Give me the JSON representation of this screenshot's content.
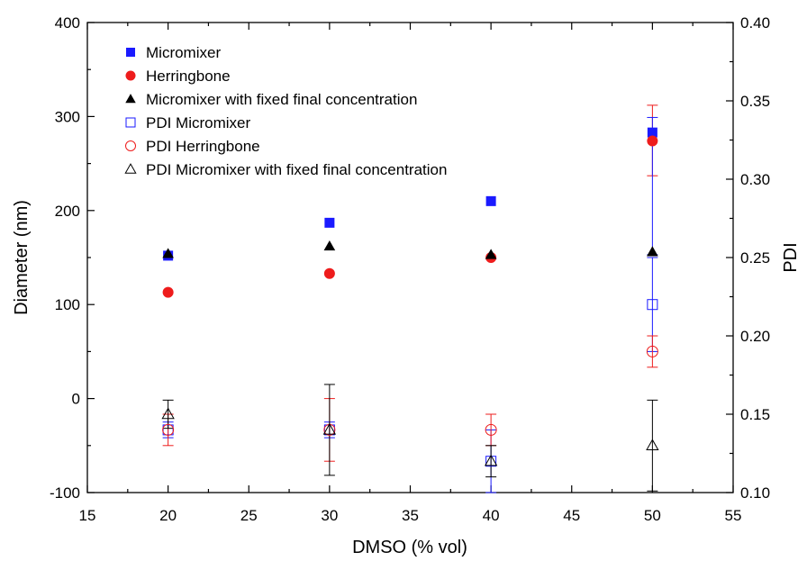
{
  "chart_data": {
    "type": "scatter",
    "xlabel": "DMSO (% vol)",
    "ylabel": "Diameter (nm)",
    "y2label": "PDI",
    "xlim": [
      15,
      55
    ],
    "ylim": [
      -100,
      400
    ],
    "y2lim": [
      0.1,
      0.4
    ],
    "x_ticks": [
      "15",
      "20",
      "25",
      "30",
      "35",
      "40",
      "45",
      "50",
      "55"
    ],
    "y_ticks": [
      "-100",
      "0",
      "100",
      "200",
      "300",
      "400"
    ],
    "y2_ticks": [
      "0.10",
      "0.15",
      "0.20",
      "0.25",
      "0.30",
      "0.35",
      "0.40"
    ],
    "grid": false,
    "legend_position": "top-left",
    "series": [
      {
        "name": "Micromixer",
        "axis": "left",
        "marker": "square-filled",
        "color": "#1a1aff",
        "points": [
          {
            "x": 20,
            "y": 152
          },
          {
            "x": 30,
            "y": 187
          },
          {
            "x": 40,
            "y": 210
          },
          {
            "x": 50,
            "y": 283
          }
        ]
      },
      {
        "name": "Herringbone",
        "axis": "left",
        "marker": "circle-filled",
        "color": "#ee1c1c",
        "points": [
          {
            "x": 20,
            "y": 113
          },
          {
            "x": 30,
            "y": 133
          },
          {
            "x": 40,
            "y": 150
          },
          {
            "x": 50,
            "y": 274
          }
        ]
      },
      {
        "name": "Micromixer with fixed final concentration",
        "axis": "left",
        "marker": "triangle-filled",
        "color": "#000000",
        "points": [
          {
            "x": 20,
            "y": 154
          },
          {
            "x": 30,
            "y": 162
          },
          {
            "x": 40,
            "y": 153
          },
          {
            "x": 50,
            "y": 156
          }
        ]
      },
      {
        "name": "PDI Micromixer",
        "axis": "right",
        "marker": "square-open",
        "color": "#1a1aff",
        "points": [
          {
            "x": 20,
            "y": 0.14,
            "err": 0.005
          },
          {
            "x": 30,
            "y": 0.14,
            "err": 0.005
          },
          {
            "x": 40,
            "y": 0.12,
            "err": 0.02
          },
          {
            "x": 50,
            "y": 0.22,
            "err": 0.03
          }
        ]
      },
      {
        "name": "PDI Herringbone",
        "axis": "right",
        "marker": "circle-open",
        "color": "#ee1c1c",
        "points": [
          {
            "x": 20,
            "y": 0.14,
            "err": 0.01
          },
          {
            "x": 30,
            "y": 0.14,
            "err": 0.02
          },
          {
            "x": 40,
            "y": 0.14,
            "err": 0.01
          },
          {
            "x": 50,
            "y": 0.19,
            "err": 0.01
          }
        ]
      },
      {
        "name": "PDI Micromixer with fixed final concentration",
        "axis": "right",
        "marker": "triangle-open",
        "color": "#000000",
        "points": [
          {
            "x": 20,
            "y": 0.15,
            "err": 0.009
          },
          {
            "x": 30,
            "y": 0.14,
            "err": 0.029
          },
          {
            "x": 40,
            "y": 0.12,
            "err": 0.01
          },
          {
            "x": 50,
            "y": 0.13,
            "err": 0.029
          }
        ]
      }
    ],
    "error_bars_left": [
      {
        "x": 50,
        "low": 237,
        "high": 312,
        "color": "#ee1c1c"
      },
      {
        "x": 50,
        "low": 153,
        "high": 299,
        "color": "#1a1aff"
      }
    ]
  }
}
